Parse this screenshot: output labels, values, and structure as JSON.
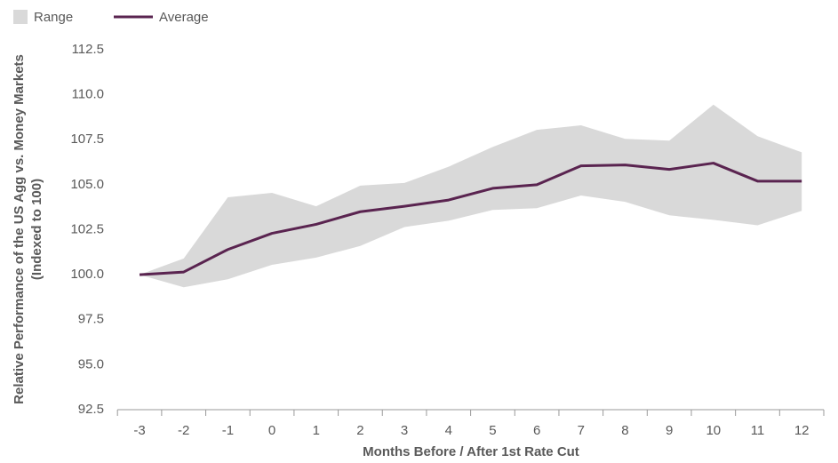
{
  "chart_data": {
    "type": "line",
    "x_label": "Months Before / After 1st Rate Cut",
    "y_label": [
      "Relative Performance of the US Agg vs. Money Markets",
      "(Indexed to 100)"
    ],
    "categories": [
      "-3",
      "-2",
      "-1",
      "0",
      "1",
      "2",
      "3",
      "4",
      "5",
      "6",
      "7",
      "8",
      "9",
      "10",
      "11",
      "12"
    ],
    "series": [
      {
        "name": "Range",
        "type": "area",
        "color": "#d9d9d9",
        "low": [
          100.0,
          99.3,
          99.75,
          100.55,
          100.95,
          101.6,
          102.65,
          103.0,
          103.6,
          103.7,
          104.4,
          104.05,
          103.3,
          103.05,
          102.75,
          103.55
        ],
        "high": [
          100.0,
          100.9,
          104.3,
          104.55,
          103.8,
          104.95,
          105.1,
          106.0,
          107.1,
          108.05,
          108.3,
          107.55,
          107.45,
          109.45,
          107.7,
          106.8
        ]
      },
      {
        "name": "Average",
        "type": "line",
        "color": "#5a2450",
        "values": [
          100.0,
          100.15,
          101.4,
          102.3,
          102.8,
          103.5,
          103.8,
          104.15,
          104.8,
          105.0,
          106.05,
          106.1,
          105.85,
          106.2,
          105.2,
          105.2
        ]
      }
    ],
    "ylim": [
      92.5,
      112.5
    ],
    "yticks": [
      92.5,
      {
        "value": 95,
        "label": "95.0"
      },
      97.5,
      {
        "value": 100,
        "label": "100.0"
      },
      102.5,
      {
        "value": 105,
        "label": "105.0"
      },
      107.5,
      {
        "value": 110,
        "label": "110.0"
      },
      112.5
    ],
    "grid": false,
    "legend": "top-left"
  }
}
